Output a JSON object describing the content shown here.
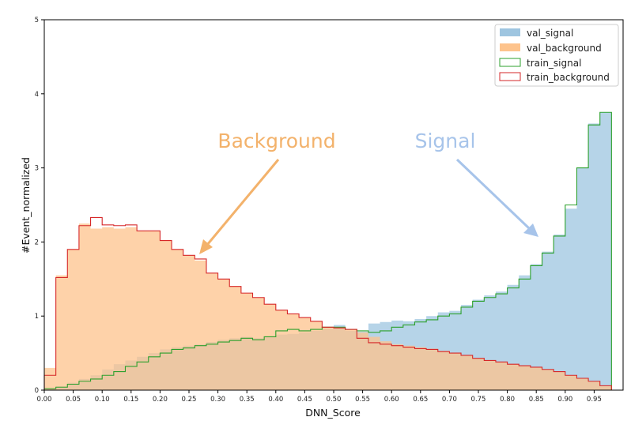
{
  "chart_data": {
    "type": "histogram",
    "xlabel": "DNN_Score",
    "ylabel": "#Event_normalized",
    "xlim": [
      0,
      1
    ],
    "ylim": [
      0,
      5
    ],
    "xticks": [
      "0.00",
      "0.05",
      "0.10",
      "0.15",
      "0.20",
      "0.25",
      "0.30",
      "0.35",
      "0.40",
      "0.45",
      "0.50",
      "0.55",
      "0.60",
      "0.65",
      "0.70",
      "0.75",
      "0.80",
      "0.85",
      "0.90",
      "0.95"
    ],
    "yticks": [
      "0",
      "1",
      "2",
      "3",
      "4",
      "5"
    ],
    "bin_width": 0.02,
    "legend_position": "top-right",
    "legend": [
      {
        "label": "val_signal",
        "style": "filled",
        "color": "#9ec5e0"
      },
      {
        "label": "val_background",
        "style": "filled",
        "color": "#fdc38c"
      },
      {
        "label": "train_signal",
        "style": "step",
        "color": "#2ca02c"
      },
      {
        "label": "train_background",
        "style": "step",
        "color": "#d62728"
      }
    ],
    "series": [
      {
        "name": "val_signal",
        "values": [
          0.02,
          0.05,
          0.1,
          0.15,
          0.2,
          0.28,
          0.35,
          0.4,
          0.45,
          0.5,
          0.55,
          0.58,
          0.6,
          0.62,
          0.65,
          0.68,
          0.7,
          0.72,
          0.7,
          0.72,
          0.75,
          0.76,
          0.78,
          0.8,
          0.83,
          0.88,
          0.8,
          0.79,
          0.9,
          0.92,
          0.94,
          0.93,
          0.96,
          1.0,
          1.05,
          1.07,
          1.15,
          1.22,
          1.28,
          1.33,
          1.42,
          1.55,
          1.7,
          1.87,
          2.1,
          2.45,
          3.0,
          3.6,
          3.75,
          0.0
        ]
      },
      {
        "name": "val_background",
        "values": [
          0.3,
          1.55,
          1.9,
          2.25,
          2.18,
          2.2,
          2.18,
          2.2,
          2.15,
          2.15,
          2.02,
          1.9,
          1.82,
          1.75,
          1.58,
          1.5,
          1.4,
          1.31,
          1.25,
          1.16,
          1.08,
          1.03,
          0.98,
          0.93,
          0.85,
          0.84,
          0.82,
          0.78,
          0.72,
          0.66,
          0.62,
          0.6,
          0.58,
          0.56,
          0.53,
          0.5,
          0.47,
          0.43,
          0.4,
          0.38,
          0.35,
          0.33,
          0.31,
          0.28,
          0.25,
          0.2,
          0.16,
          0.12,
          0.06,
          0.0
        ]
      },
      {
        "name": "train_signal",
        "values": [
          0.02,
          0.04,
          0.08,
          0.12,
          0.15,
          0.2,
          0.25,
          0.32,
          0.38,
          0.45,
          0.5,
          0.55,
          0.57,
          0.6,
          0.62,
          0.65,
          0.67,
          0.7,
          0.68,
          0.72,
          0.8,
          0.82,
          0.8,
          0.82,
          0.85,
          0.85,
          0.82,
          0.8,
          0.78,
          0.8,
          0.85,
          0.88,
          0.92,
          0.95,
          1.0,
          1.03,
          1.12,
          1.2,
          1.25,
          1.3,
          1.38,
          1.5,
          1.68,
          1.85,
          2.08,
          2.5,
          3.0,
          3.58,
          3.75,
          0.0
        ]
      },
      {
        "name": "train_background",
        "values": [
          0.2,
          1.52,
          1.9,
          2.22,
          2.33,
          2.23,
          2.22,
          2.23,
          2.15,
          2.15,
          2.02,
          1.9,
          1.82,
          1.77,
          1.58,
          1.5,
          1.4,
          1.31,
          1.25,
          1.16,
          1.08,
          1.03,
          0.98,
          0.93,
          0.85,
          0.84,
          0.82,
          0.7,
          0.64,
          0.62,
          0.6,
          0.58,
          0.56,
          0.55,
          0.52,
          0.5,
          0.47,
          0.43,
          0.4,
          0.38,
          0.35,
          0.33,
          0.31,
          0.28,
          0.25,
          0.2,
          0.16,
          0.12,
          0.06,
          0.0
        ]
      }
    ],
    "annotations": [
      {
        "text": "Background",
        "color": "#f3b26b"
      },
      {
        "text": "Signal",
        "color": "#a7c4ea"
      }
    ]
  }
}
